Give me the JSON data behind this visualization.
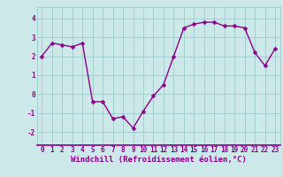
{
  "x": [
    0,
    1,
    2,
    3,
    4,
    5,
    6,
    7,
    8,
    9,
    10,
    11,
    12,
    13,
    14,
    15,
    16,
    17,
    18,
    19,
    20,
    21,
    22,
    23
  ],
  "y": [
    2.0,
    2.7,
    2.6,
    2.5,
    2.7,
    -0.4,
    -0.4,
    -1.3,
    -1.2,
    -1.8,
    -0.9,
    -0.1,
    0.5,
    2.0,
    3.5,
    3.7,
    3.8,
    3.8,
    3.6,
    3.6,
    3.5,
    2.2,
    1.5,
    2.4
  ],
  "line_color": "#8b008b",
  "marker": "D",
  "markersize": 2.5,
  "linewidth": 1.0,
  "bg_color": "#cce8e8",
  "grid_color": "#99cccc",
  "xlabel": "Windchill (Refroidissement éolien,°C)",
  "xlabel_fontsize": 6.5,
  "xlabel_color": "#8b008b",
  "tick_color": "#8b008b",
  "tick_fontsize": 5.5,
  "ytick_labels": [
    "-2",
    "-1",
    "0",
    "1",
    "2",
    "3",
    "4"
  ],
  "yticks": [
    -2,
    -1,
    0,
    1,
    2,
    3,
    4
  ],
  "ylim": [
    -2.7,
    4.6
  ],
  "xlim": [
    -0.5,
    23.5
  ],
  "xtick_labels": [
    "0",
    "1",
    "2",
    "3",
    "4",
    "5",
    "6",
    "7",
    "8",
    "9",
    "10",
    "11",
    "12",
    "13",
    "14",
    "15",
    "16",
    "17",
    "18",
    "19",
    "20",
    "21",
    "22",
    "23"
  ],
  "spine_color": "#8b008b",
  "bottom_spine_color": "#8b008b"
}
